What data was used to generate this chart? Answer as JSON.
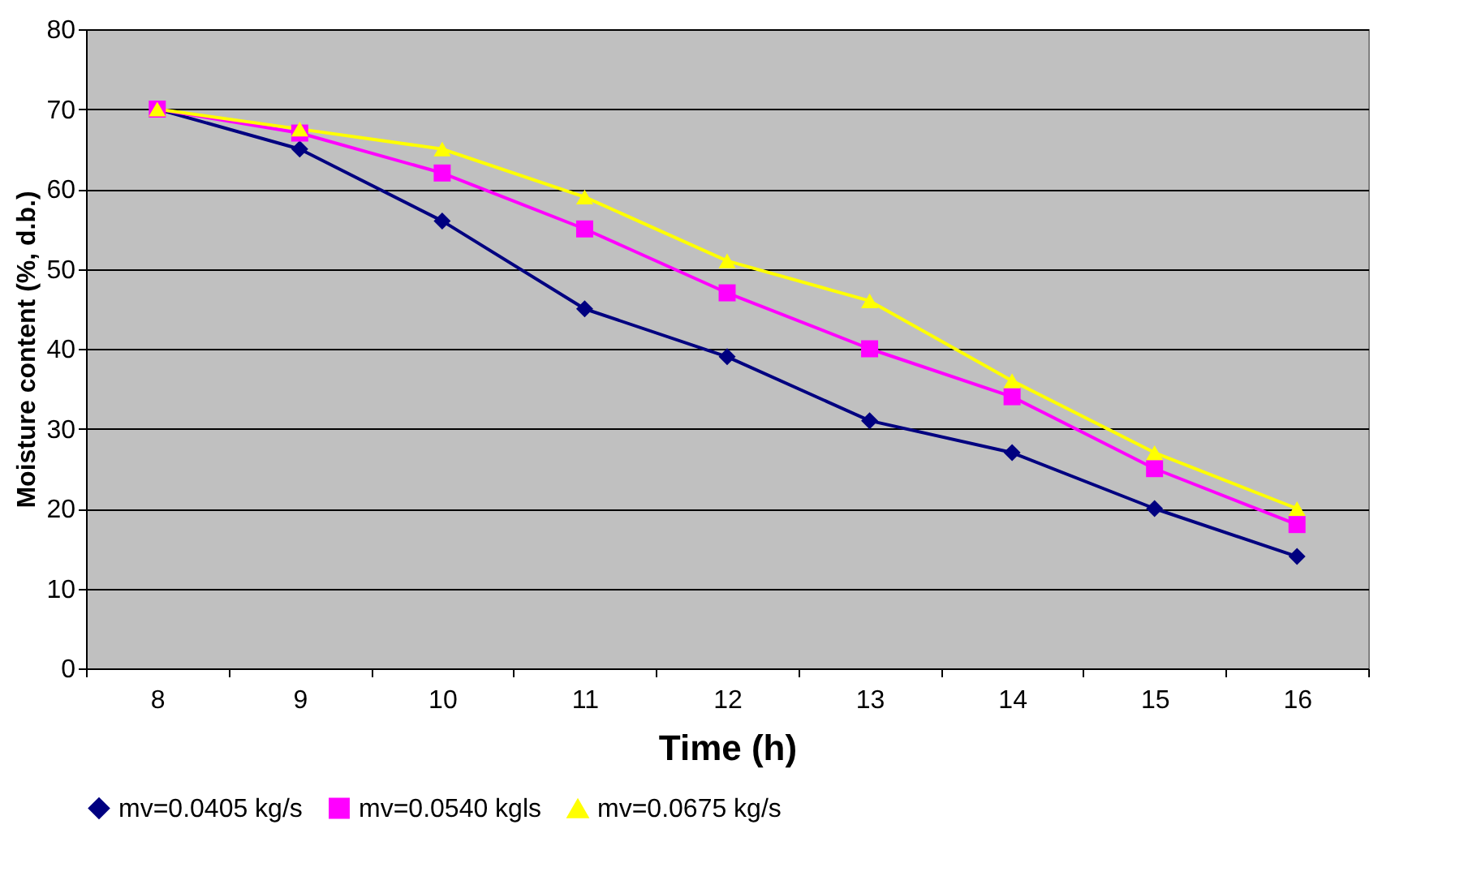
{
  "chart_data": {
    "type": "line",
    "xlabel": "Time (h)",
    "ylabel": "Moisture content (%, d.b.)",
    "categories": [
      "8",
      "9",
      "10",
      "11",
      "12",
      "13",
      "14",
      "15",
      "16"
    ],
    "series": [
      {
        "name": "mv=0.0405 kg/s",
        "color": "#000080",
        "marker": "diamond",
        "values": [
          70,
          65,
          56,
          45,
          39,
          31,
          27,
          20,
          14
        ]
      },
      {
        "name": "mv=0.0540 kgls",
        "color": "#ff00ff",
        "marker": "square",
        "values": [
          70,
          67,
          62,
          55,
          47,
          40,
          34,
          25,
          18
        ]
      },
      {
        "name": "mv=0.0675 kg/s",
        "color": "#ffff00",
        "marker": "triangle",
        "values": [
          70,
          67.5,
          65,
          59,
          51,
          46,
          36,
          27,
          20
        ]
      }
    ],
    "ylim": [
      0,
      80
    ],
    "yticks": [
      0,
      10,
      20,
      30,
      40,
      50,
      60,
      70,
      80
    ],
    "grid": "y",
    "legend": "bottom",
    "line_style": "solid"
  }
}
